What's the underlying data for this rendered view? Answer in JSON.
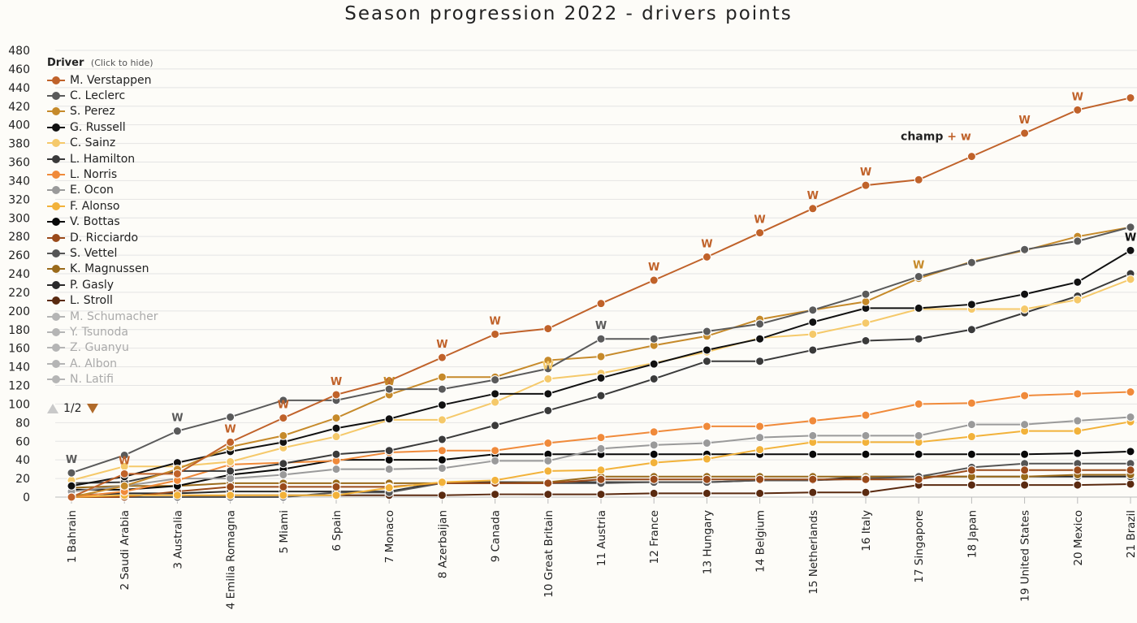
{
  "chart_data": {
    "type": "line",
    "title": "Season progression 2022 - drivers points",
    "categories": [
      "1 Bahrain",
      "2 Saudi Arabia",
      "3 Australia",
      "4 Emilia Romagna",
      "5 Miami",
      "6 Spain",
      "7 Monaco",
      "8 Azerbaijan",
      "9 Canada",
      "10 Great Britain",
      "11 Austria",
      "12 France",
      "13 Hungary",
      "14 Belgium",
      "15 Netherlands",
      "16 Italy",
      "17 Singapore",
      "18 Japan",
      "19 United States",
      "20 Mexico",
      "21 Brazil"
    ],
    "ylim": [
      0,
      480
    ],
    "ytick_step": 20,
    "grid": true,
    "legend_title": "Driver",
    "legend_hint": "(Click to hide)",
    "legend_placement": "left",
    "legend_pager": "1/2",
    "series": [
      {
        "name": "M. Verstappen",
        "color": "#c0622a",
        "values": [
          0,
          25,
          25,
          59,
          85,
          110,
          125,
          150,
          175,
          181,
          208,
          233,
          258,
          284,
          310,
          335,
          341,
          366,
          391,
          416,
          429
        ]
      },
      {
        "name": "C. Leclerc",
        "color": "#5a5a5a",
        "values": [
          26,
          45,
          71,
          86,
          104,
          104,
          116,
          116,
          126,
          138,
          170,
          170,
          178,
          186,
          201,
          218,
          237,
          252,
          266,
          275,
          290
        ]
      },
      {
        "name": "S. Perez",
        "color": "#c68a2a",
        "values": [
          0,
          12,
          30,
          54,
          66,
          85,
          110,
          129,
          129,
          147,
          151,
          163,
          173,
          191,
          201,
          210,
          235,
          253,
          265,
          280,
          290
        ]
      },
      {
        "name": "G. Russell",
        "color": "#111111",
        "values": [
          12,
          22,
          37,
          49,
          59,
          74,
          84,
          99,
          111,
          111,
          128,
          143,
          158,
          170,
          188,
          203,
          203,
          207,
          218,
          231,
          265
        ]
      },
      {
        "name": "C. Sainz",
        "color": "#f5c96a",
        "values": [
          18,
          33,
          33,
          38,
          53,
          65,
          83,
          83,
          102,
          127,
          133,
          144,
          156,
          171,
          175,
          187,
          202,
          202,
          202,
          212,
          234
        ]
      },
      {
        "name": "L. Hamilton",
        "color": "#3a3a3a",
        "values": [
          15,
          16,
          28,
          28,
          36,
          46,
          50,
          62,
          77,
          93,
          109,
          127,
          146,
          146,
          158,
          168,
          170,
          180,
          198,
          216,
          240
        ]
      },
      {
        "name": "L. Norris",
        "color": "#f08a3a",
        "values": [
          0,
          6,
          18,
          35,
          37,
          39,
          48,
          50,
          50,
          58,
          64,
          70,
          76,
          76,
          82,
          88,
          100,
          101,
          109,
          111,
          113
        ]
      },
      {
        "name": "E. Ocon",
        "color": "#9a9a9a",
        "values": [
          6,
          12,
          20,
          20,
          24,
          30,
          30,
          31,
          39,
          39,
          52,
          56,
          58,
          64,
          66,
          66,
          66,
          78,
          78,
          82,
          86
        ]
      },
      {
        "name": "F. Alonso",
        "color": "#f2b23a",
        "values": [
          0,
          2,
          2,
          2,
          2,
          2,
          10,
          16,
          18,
          28,
          29,
          37,
          41,
          51,
          59,
          59,
          59,
          65,
          71,
          71,
          81
        ]
      },
      {
        "name": "V. Bottas",
        "color": "#080808",
        "values": [
          8,
          8,
          12,
          24,
          30,
          40,
          40,
          40,
          46,
          46,
          46,
          46,
          46,
          46,
          46,
          46,
          46,
          46,
          46,
          47,
          49
        ]
      },
      {
        "name": "D. Ricciardo",
        "color": "#9a4a1a",
        "values": [
          0,
          0,
          6,
          11,
          11,
          11,
          11,
          15,
          15,
          15,
          19,
          19,
          19,
          19,
          19,
          19,
          19,
          29,
          29,
          29,
          29
        ]
      },
      {
        "name": "S. Vettel",
        "color": "#555555",
        "values": [
          0,
          0,
          0,
          0,
          0,
          5,
          5,
          15,
          15,
          15,
          15,
          16,
          16,
          18,
          18,
          20,
          22,
          32,
          36,
          36,
          36
        ]
      },
      {
        "name": "K. Magnussen",
        "color": "#9a6a1a",
        "values": [
          10,
          12,
          12,
          15,
          15,
          15,
          15,
          15,
          15,
          16,
          22,
          22,
          22,
          22,
          22,
          22,
          22,
          22,
          22,
          24,
          24
        ]
      },
      {
        "name": "P. Gasly",
        "color": "#2a2a2a",
        "values": [
          2,
          4,
          4,
          6,
          6,
          6,
          6,
          16,
          16,
          16,
          16,
          16,
          16,
          18,
          18,
          22,
          22,
          22,
          22,
          22,
          22
        ]
      },
      {
        "name": "L. Stroll",
        "color": "#5a2a10",
        "values": [
          0,
          0,
          0,
          2,
          2,
          2,
          2,
          2,
          3,
          3,
          3,
          4,
          4,
          4,
          5,
          5,
          13,
          13,
          13,
          13,
          14
        ]
      }
    ],
    "legend_greyed": [
      "M. Schumacher",
      "Y. Tsunoda",
      "Z. Guanyu",
      "A. Albon",
      "N. Latifi"
    ],
    "win_markers": [
      {
        "series": "C. Leclerc",
        "race": 0,
        "label": "W"
      },
      {
        "series": "M. Verstappen",
        "race": 1,
        "label": "W"
      },
      {
        "series": "C. Leclerc",
        "race": 2,
        "label": "W"
      },
      {
        "series": "M. Verstappen",
        "race": 3,
        "label": "W"
      },
      {
        "series": "M. Verstappen",
        "race": 4,
        "label": "W"
      },
      {
        "series": "M. Verstappen",
        "race": 5,
        "label": "W"
      },
      {
        "series": "S. Perez",
        "race": 6,
        "label": "W"
      },
      {
        "series": "M. Verstappen",
        "race": 7,
        "label": "W"
      },
      {
        "series": "M. Verstappen",
        "race": 8,
        "label": "W"
      },
      {
        "series": "C. Sainz",
        "race": 9,
        "label": "W"
      },
      {
        "series": "C. Leclerc",
        "race": 10,
        "label": "W"
      },
      {
        "series": "M. Verstappen",
        "race": 11,
        "label": "W"
      },
      {
        "series": "M. Verstappen",
        "race": 12,
        "label": "W"
      },
      {
        "series": "M. Verstappen",
        "race": 13,
        "label": "W"
      },
      {
        "series": "M. Verstappen",
        "race": 14,
        "label": "W"
      },
      {
        "series": "M. Verstappen",
        "race": 15,
        "label": "W"
      },
      {
        "series": "S. Perez",
        "race": 16,
        "label": "W"
      },
      {
        "series": "M. Verstappen",
        "race": 18,
        "label": "W"
      },
      {
        "series": "M. Verstappen",
        "race": 19,
        "label": "W"
      },
      {
        "series": "G. Russell",
        "race": 20,
        "label": "W"
      }
    ],
    "annotation": {
      "series": "M. Verstappen",
      "race": 17,
      "text": "champ",
      "plus": "+",
      "suffix": "w"
    }
  }
}
